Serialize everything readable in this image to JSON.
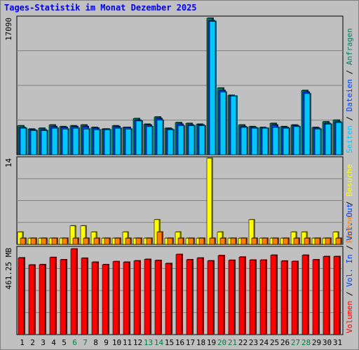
{
  "title": "Tages-Statistik im Monat Dezember 2025",
  "colors": {
    "anfragen": "#008060",
    "dateien": "#0040ff",
    "seiten": "#00c8ff",
    "besuche": "#ffff00",
    "rechner": "#ff8000",
    "volumen": "#ff0000",
    "weekend": "#008040",
    "plot_bg": "#c0c0c0",
    "grid": "#808080"
  },
  "chart_data": [
    {
      "type": "bar",
      "panel": "top",
      "ymax_label": "17090",
      "ymax": 17090,
      "legend": [
        "Anfragen",
        "Dateien",
        "Seiten"
      ],
      "legend_separator": " / ",
      "series": [
        {
          "name": "Anfragen",
          "values": [
            3600,
            3200,
            3300,
            3700,
            3500,
            3600,
            3700,
            3400,
            3200,
            3600,
            3400,
            4500,
            3800,
            4700,
            3300,
            4000,
            3900,
            3800,
            17000,
            8300,
            7400,
            3700,
            3500,
            3400,
            3900,
            3500,
            3700,
            8000,
            3400,
            4100,
            4300
          ]
        },
        {
          "name": "Dateien",
          "values": [
            3400,
            3100,
            3100,
            3500,
            3400,
            3500,
            3500,
            3300,
            3200,
            3500,
            3400,
            4300,
            3700,
            4500,
            3200,
            3800,
            3700,
            3700,
            16700,
            8000,
            7300,
            3500,
            3400,
            3300,
            3700,
            3400,
            3600,
            7800,
            3300,
            3900,
            4100
          ]
        },
        {
          "name": "Seiten",
          "values": [
            3300,
            3000,
            3000,
            3300,
            3200,
            3300,
            3200,
            3100,
            3100,
            3300,
            3200,
            4200,
            3500,
            4300,
            3100,
            3600,
            3600,
            3600,
            16600,
            7800,
            7300,
            3400,
            3300,
            3300,
            3400,
            3300,
            3500,
            7600,
            3200,
            3800,
            4000
          ]
        }
      ]
    },
    {
      "type": "bar",
      "panel": "middle",
      "ymax_label": "14",
      "ymax": 14,
      "legend": [
        "Besuche",
        "Rechner"
      ],
      "legend_separator": " / ",
      "series": [
        {
          "name": "Besuche",
          "values": [
            2,
            1,
            1,
            1,
            1,
            3,
            3,
            2,
            1,
            1,
            2,
            1,
            1,
            4,
            1,
            2,
            1,
            1,
            14,
            2,
            1,
            1,
            4,
            1,
            1,
            1,
            2,
            2,
            1,
            1,
            2
          ]
        },
        {
          "name": "Rechner",
          "values": [
            1,
            1,
            1,
            1,
            1,
            1,
            1,
            1,
            1,
            1,
            1,
            1,
            1,
            2,
            1,
            1,
            1,
            1,
            1,
            1,
            1,
            1,
            1,
            1,
            1,
            1,
            1,
            1,
            1,
            1,
            1
          ]
        }
      ]
    },
    {
      "type": "bar",
      "panel": "bottom",
      "ymax_label": "461.25 MB",
      "ymax": 461.25,
      "legend": [
        "Vol. Out",
        "Vol. In",
        "Volumen"
      ],
      "legend_separator": " / ",
      "series": [
        {
          "name": "Volumen",
          "values": [
            408,
            370,
            372,
            410,
            398,
            455,
            406,
            385,
            372,
            388,
            385,
            392,
            400,
            394,
            378,
            426,
            398,
            407,
            392,
            420,
            395,
            412,
            396,
            396,
            422,
            391,
            389,
            422,
            398,
            415,
            415
          ]
        }
      ]
    }
  ],
  "xaxis": {
    "days": [
      "1",
      "2",
      "3",
      "4",
      "5",
      "6",
      "7",
      "8",
      "9",
      "10",
      "11",
      "12",
      "13",
      "14",
      "15",
      "16",
      "17",
      "18",
      "19",
      "20",
      "21",
      "22",
      "23",
      "24",
      "25",
      "26",
      "27",
      "28",
      "29",
      "30",
      "31"
    ],
    "weekend_days": [
      "6",
      "7",
      "13",
      "14",
      "20",
      "21",
      "27",
      "28"
    ]
  }
}
